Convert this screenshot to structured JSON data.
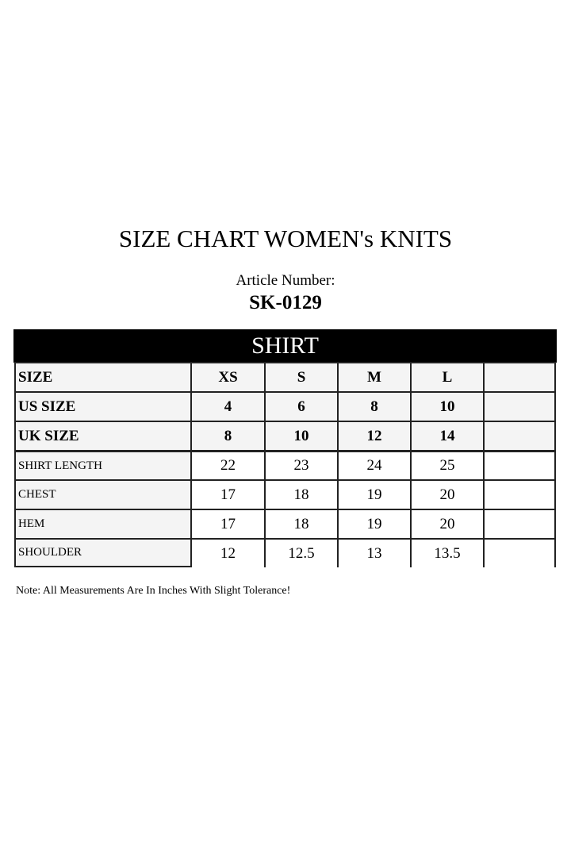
{
  "title": "SIZE CHART WOMEN's KNITS",
  "article_label": "Article Number:",
  "article_number": "SK-0129",
  "section": "SHIRT",
  "table": {
    "header_rows": [
      {
        "label": "SIZE",
        "values": [
          "XS",
          "S",
          "M",
          "L",
          ""
        ]
      },
      {
        "label": "US SIZE",
        "values": [
          "4",
          "6",
          "8",
          "10",
          ""
        ]
      },
      {
        "label": "UK SIZE",
        "values": [
          "8",
          "10",
          "12",
          "14",
          ""
        ]
      }
    ],
    "rows": [
      {
        "label": "SHIRT LENGTH",
        "values": [
          "22",
          "23",
          "24",
          "25",
          ""
        ]
      },
      {
        "label": "CHEST",
        "values": [
          "17",
          "18",
          "19",
          "20",
          ""
        ]
      },
      {
        "label": "HEM",
        "values": [
          "17",
          "18",
          "19",
          "20",
          ""
        ]
      },
      {
        "label": "SHOULDER",
        "values": [
          "12",
          "12.5",
          "13",
          "13.5",
          ""
        ]
      }
    ]
  },
  "note": "Note: All Measurements Are In Inches With Slight Tolerance!",
  "colors": {
    "header_fill": "#f4f4f4",
    "banner": "#000000"
  }
}
